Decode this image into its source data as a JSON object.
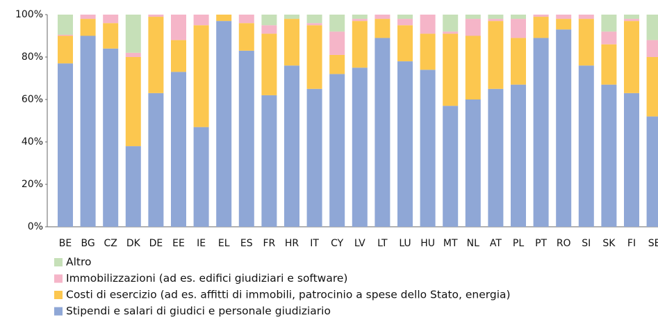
{
  "chart_data": {
    "type": "stacked_bar",
    "categories": [
      "BE",
      "BG",
      "CZ",
      "DK",
      "DE",
      "EE",
      "IE",
      "EL",
      "ES",
      "FR",
      "HR",
      "IT",
      "CY",
      "LV",
      "LT",
      "LU",
      "HU",
      "MT",
      "NL",
      "AT",
      "PL",
      "PT",
      "RO",
      "SI",
      "SK",
      "FI",
      "SE"
    ],
    "series": [
      {
        "name": "Altro",
        "color": "#c6e0b8",
        "values": [
          9.5,
          0,
          0,
          18,
          0,
          0,
          0,
          0,
          0,
          5,
          2,
          4,
          8,
          2,
          0,
          2,
          0,
          8,
          2,
          2,
          2,
          0,
          0,
          0,
          8,
          2,
          12
        ]
      },
      {
        "name": "Immobilizzazioni (ad es. edifici giudiziari e software)",
        "color": "#f5b5c8",
        "values": [
          0.5,
          2,
          4,
          2,
          1,
          12,
          5,
          0,
          4,
          4,
          0,
          1,
          11,
          1,
          2,
          3,
          9,
          1,
          8,
          1,
          9,
          1,
          2,
          2,
          6,
          1,
          8
        ]
      },
      {
        "name": "Costi di esercizio (ad es. affitti di immobili, patrocinio a spese dello Stato, energia)",
        "color": "#fcc74f",
        "values": [
          13,
          8,
          12,
          42,
          36,
          15,
          48,
          3,
          13,
          29,
          22,
          30,
          9,
          22,
          9,
          17,
          17,
          34,
          30,
          32,
          22,
          10,
          5,
          22,
          19,
          34,
          28
        ]
      },
      {
        "name": "Stipendi e salari di giudici e personale giudiziario",
        "color": "#8fa7d6",
        "values": [
          77,
          90,
          84,
          38,
          63,
          73,
          47,
          97,
          83,
          62,
          76,
          65,
          72,
          75,
          89,
          78,
          74,
          57,
          60,
          65,
          67,
          89,
          93,
          76,
          67,
          63,
          52
        ]
      }
    ],
    "ylim": [
      0,
      100
    ],
    "yticks": [
      {
        "value": 0,
        "label": "0%"
      },
      {
        "value": 20,
        "label": "20%"
      },
      {
        "value": 40,
        "label": "40%"
      },
      {
        "value": 60,
        "label": "60%"
      },
      {
        "value": 80,
        "label": "80%"
      },
      {
        "value": 100,
        "label": "100%"
      }
    ]
  }
}
